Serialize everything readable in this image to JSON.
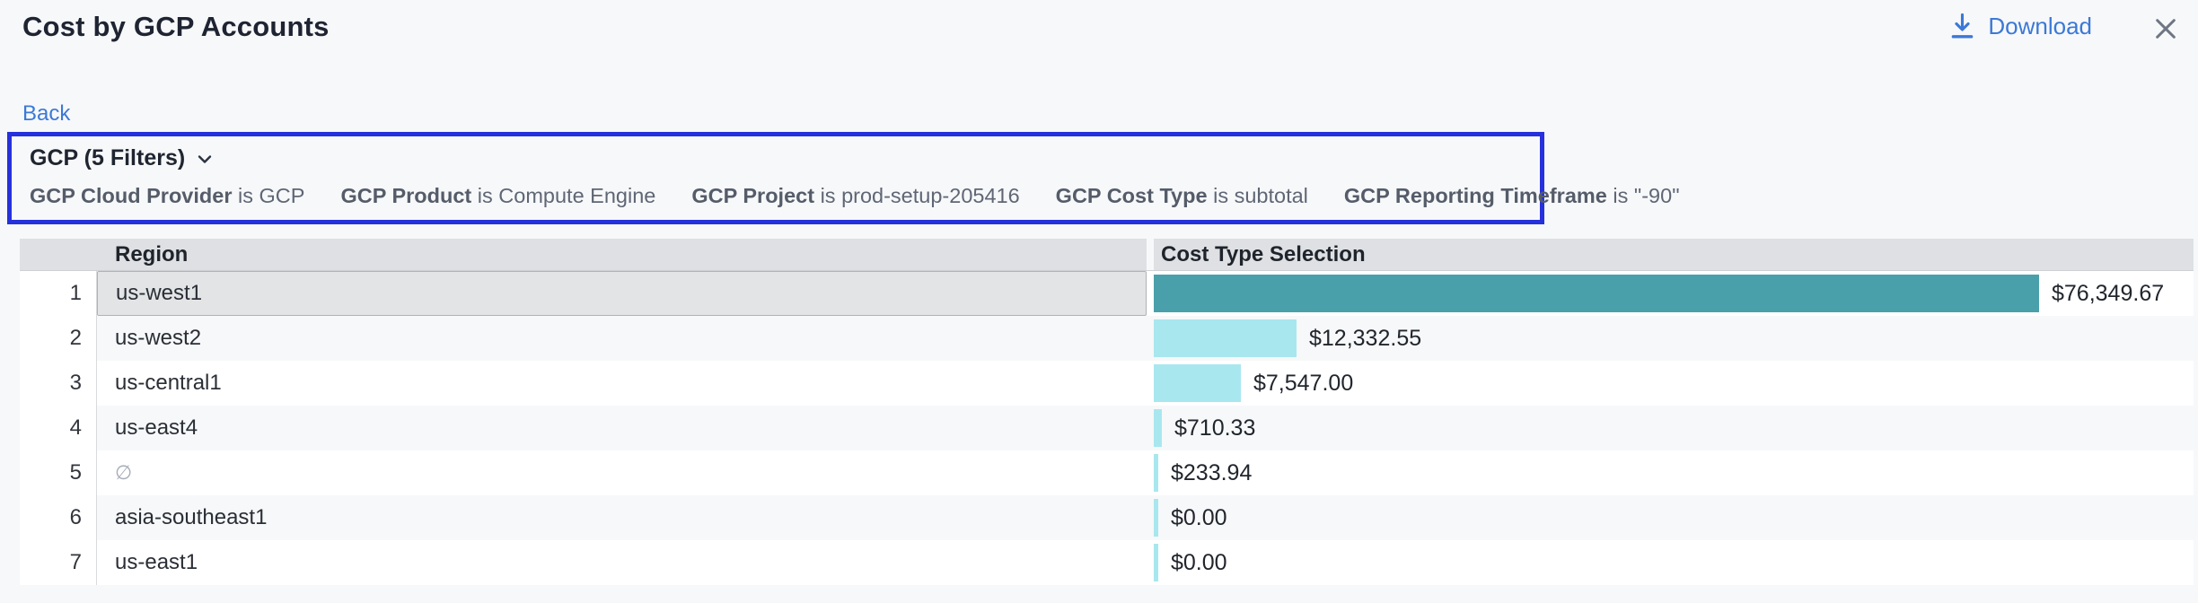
{
  "page": {
    "title": "Cost by GCP Accounts"
  },
  "actions": {
    "download_label": "Download",
    "back_label": "Back"
  },
  "icons": {
    "download": "arrow-down-to-line",
    "close": "x-mark",
    "filter_expand": "chevron-down"
  },
  "filter_panel": {
    "summary_label": "GCP (5 Filters)",
    "border_color": "#2531DC",
    "chips": [
      {
        "name": "GCP Cloud Provider",
        "op": "is",
        "value": "GCP"
      },
      {
        "name": "GCP Product",
        "op": "is",
        "value": "Compute Engine"
      },
      {
        "name": "GCP Project",
        "op": "is",
        "value": "prod-setup-205416"
      },
      {
        "name": "GCP Cost Type",
        "op": "is",
        "value": "subtotal"
      },
      {
        "name": "GCP Reporting Timeframe",
        "op": "is",
        "value": "\"-90\""
      }
    ]
  },
  "table": {
    "columns": {
      "region": "Region",
      "cost": "Cost Type Selection"
    }
  },
  "chart_data": {
    "type": "bar",
    "title": "Cost by GCP Accounts",
    "xlabel": "Cost Type Selection",
    "ylabel": "Region",
    "orientation": "horizontal",
    "categories": [
      "us-west1",
      "us-west2",
      "us-central1",
      "us-east4",
      "∅",
      "asia-southeast1",
      "us-east1"
    ],
    "values": [
      76349.67,
      12332.55,
      7547.0,
      710.33,
      233.94,
      0.0,
      0.0
    ],
    "value_labels": [
      "$76,349.67",
      "$12,332.55",
      "$7,547.00",
      "$710.33",
      "$233.94",
      "$0.00",
      "$0.00"
    ],
    "row_numbers": [
      1,
      2,
      3,
      4,
      5,
      6,
      7
    ],
    "null_categories": [
      "∅"
    ],
    "selected_row_index": 0,
    "xlim": [
      0,
      76349.67
    ],
    "bar_color_selected": "#4AA0AA",
    "bar_color": "#A9E7EF",
    "legend": "none",
    "grid": "off"
  },
  "colors": {
    "page_bg": "#F7F8FA",
    "link_blue": "#3B79D6",
    "filter_border_blue": "#2531DC",
    "table_header_bg": "#DEE0E3",
    "row_stripe": "#F7F8F9",
    "selected_cell_bg": "#E3E4E6",
    "bar_teal": "#4AA0AA",
    "bar_cyan": "#A9E7EF"
  }
}
